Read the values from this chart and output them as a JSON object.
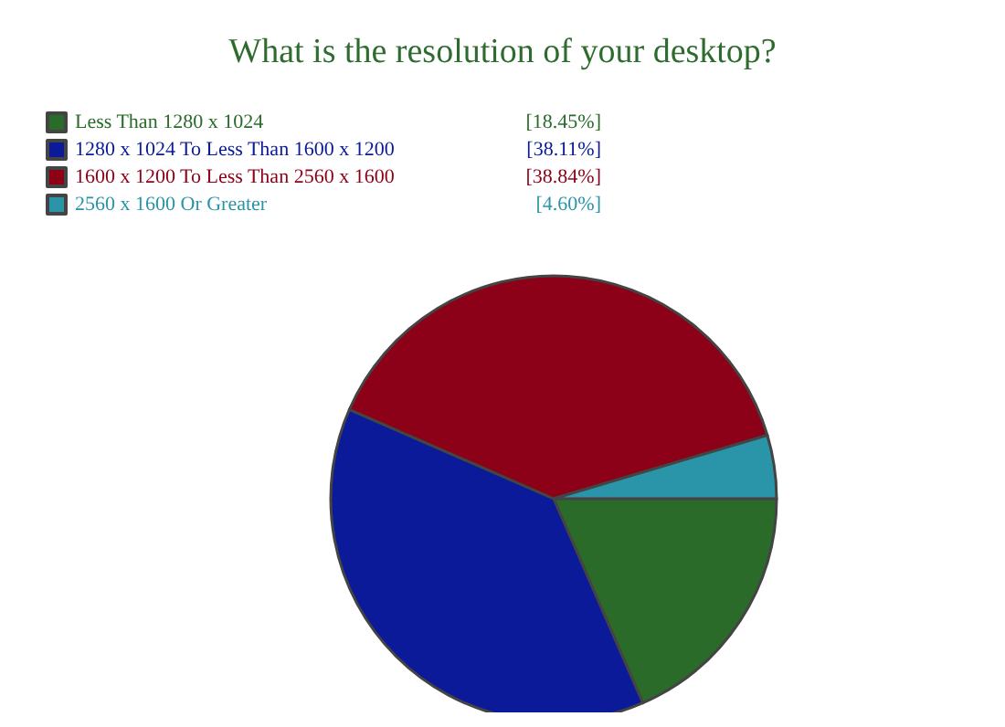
{
  "chart_data": {
    "type": "pie",
    "title": "What is the resolution of your desktop?",
    "categories": [
      "Less Than 1280 x 1024",
      "1280 x 1024 To Less Than 1600 x 1200",
      "1600 x 1200 To Less Than 2560 x 1600",
      "2560 x 1600 Or Greater"
    ],
    "values": [
      18.45,
      38.11,
      38.84,
      4.6
    ],
    "colors": [
      "#2a6b2a",
      "#0a1a99",
      "#8c0018",
      "#2a94a8"
    ],
    "value_labels": [
      "[18.45%]",
      "[38.11%]",
      "[38.84%]",
      "[4.60%]"
    ],
    "legend": "top left"
  }
}
